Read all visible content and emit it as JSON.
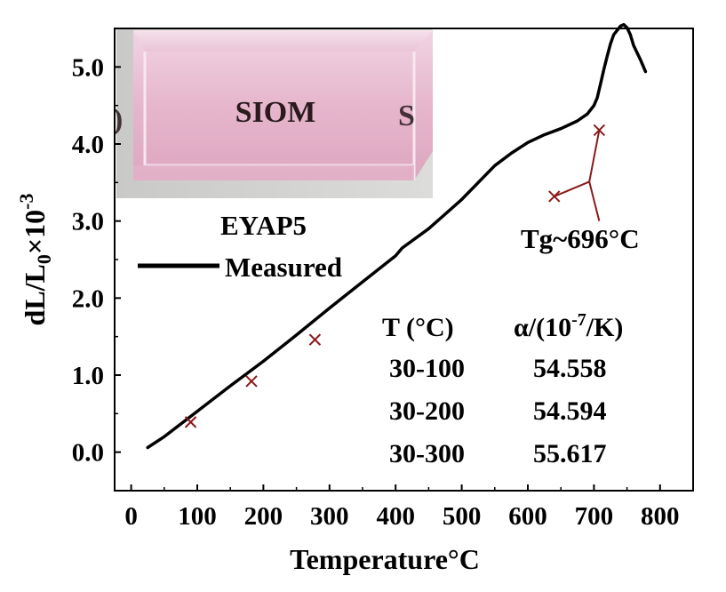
{
  "chart_data": {
    "type": "line",
    "xlabel": "Temperature°C",
    "ylabel_main": "dL/L",
    "ylabel_sub": "0",
    "ylabel_times": "×10",
    "ylabel_sup": "-3",
    "xlim": [
      -25,
      850
    ],
    "ylim": [
      -0.5,
      5.5
    ],
    "x_ticks": [
      0,
      100,
      200,
      300,
      400,
      500,
      600,
      700,
      800
    ],
    "y_ticks": [
      0.0,
      1.0,
      2.0,
      3.0,
      4.0,
      5.0
    ],
    "x_tick_labels": [
      "0",
      "100",
      "200",
      "300",
      "400",
      "500",
      "600",
      "700",
      "800"
    ],
    "y_tick_labels": [
      "0.0",
      "1.0",
      "2.0",
      "3.0",
      "4.0",
      "5.0"
    ],
    "grid": false,
    "series": [
      {
        "name": "Measured",
        "color": "#000000",
        "x": [
          25,
          50,
          100,
          150,
          200,
          250,
          300,
          350,
          400,
          410,
          450,
          500,
          550,
          575,
          600,
          625,
          650,
          675,
          690,
          700,
          705,
          710,
          715,
          720,
          725,
          730,
          740,
          745,
          750,
          755,
          760,
          770,
          778
        ],
        "y": [
          0.06,
          0.2,
          0.53,
          0.86,
          1.18,
          1.52,
          1.87,
          2.21,
          2.55,
          2.65,
          2.9,
          3.28,
          3.72,
          3.88,
          4.02,
          4.12,
          4.2,
          4.3,
          4.39,
          4.5,
          4.6,
          4.78,
          4.97,
          5.14,
          5.3,
          5.42,
          5.53,
          5.55,
          5.51,
          5.42,
          5.28,
          5.1,
          4.94
        ]
      }
    ],
    "markers": {
      "color": "#8b1a1a",
      "points": [
        [
          90,
          0.39
        ],
        [
          182,
          0.92
        ],
        [
          278,
          1.46
        ],
        [
          640,
          3.32
        ],
        [
          708,
          4.18
        ]
      ]
    },
    "tg_lines": [
      [
        [
          640,
          3.32
        ],
        [
          693,
          3.51
        ]
      ],
      [
        [
          708,
          4.18
        ],
        [
          693,
          3.51
        ]
      ],
      [
        [
          693,
          3.51
        ],
        [
          708,
          3.0
        ]
      ]
    ],
    "legend": {
      "title": "EYAP5",
      "entry": "Measured",
      "position": "upper-left"
    },
    "annotation": "Tg~696°C",
    "table": {
      "header_left": "T (°C)",
      "header_right_a": "α/(10",
      "header_right_sup": "-7",
      "header_right_b": "/K)",
      "rows": [
        {
          "range": "30-100",
          "alpha": "54.558"
        },
        {
          "range": "30-200",
          "alpha": "54.594"
        },
        {
          "range": "30-300",
          "alpha": "55.617"
        }
      ]
    },
    "inset_photo": {
      "text_main": "SIOM"
    }
  }
}
